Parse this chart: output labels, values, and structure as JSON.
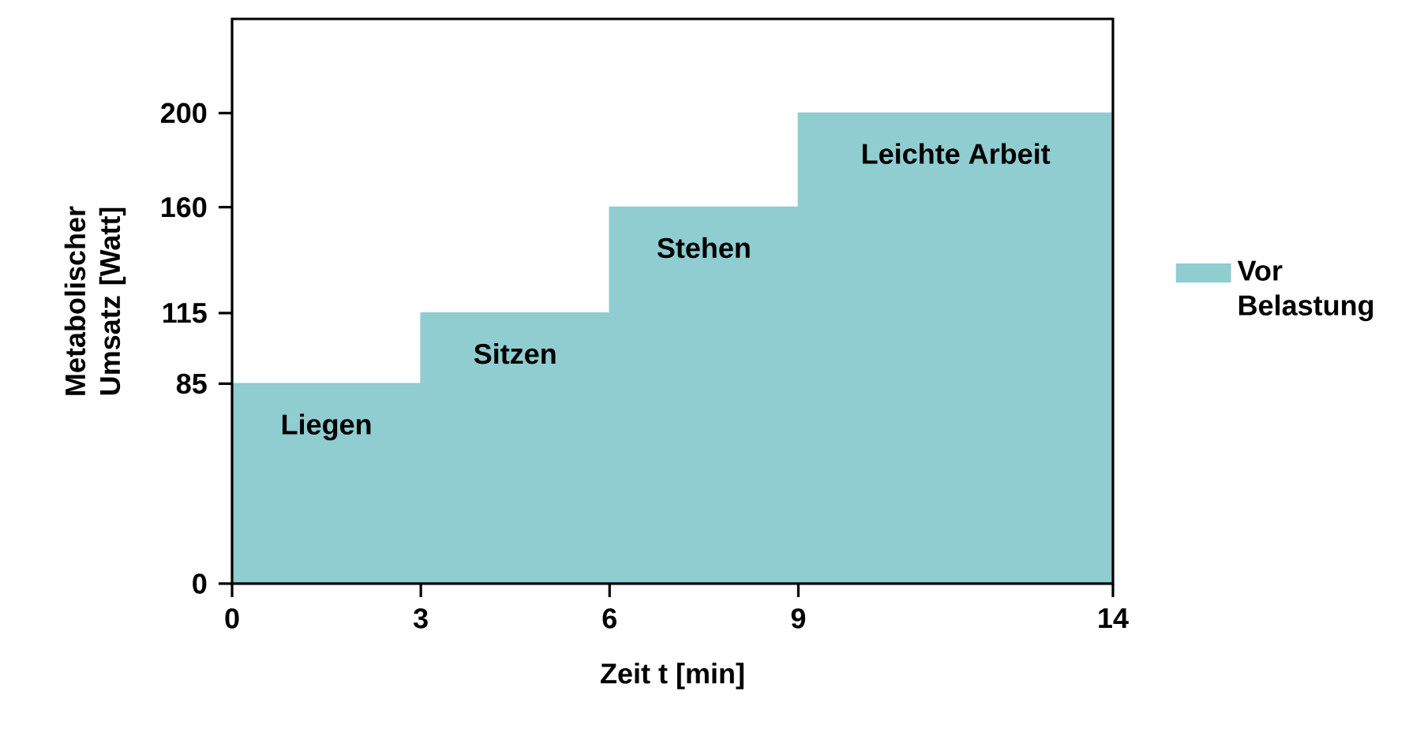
{
  "chart_data": {
    "type": "area",
    "xlabel": "Zeit t [min]",
    "ylabel": "Metabolischer Umsatz [Watt]",
    "x": [
      0,
      3,
      3,
      6,
      6,
      9,
      9,
      14
    ],
    "series": [
      {
        "name": "Vor Belastung",
        "color": "#8fcdd1",
        "values": [
          85,
          85,
          115,
          115,
          160,
          160,
          200,
          200
        ]
      }
    ],
    "xlim": [
      0,
      14
    ],
    "xticks": [
      0,
      3,
      6,
      9,
      14
    ],
    "ylim": [
      0,
      240
    ],
    "yticks": [
      0,
      85,
      115,
      160,
      200
    ],
    "legend": "right",
    "grid": false,
    "annotations": [
      "Liegen",
      "Sitzen",
      "Stehen",
      "Leichte Arbeit"
    ]
  }
}
